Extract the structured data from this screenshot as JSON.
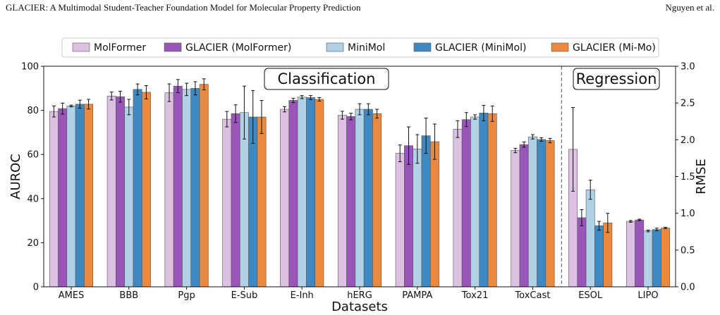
{
  "header": {
    "left": "GLACIER: A Multimodal Student-Teacher Foundation Model for Molecular Property Prediction",
    "right": "Nguyen et al."
  },
  "chart_data": {
    "type": "bar",
    "xlabel": "Datasets",
    "ylabel": "AUROC",
    "ylabel_right": "RMSE",
    "ylim": [
      0,
      100
    ],
    "ylim_right": [
      0,
      3.0
    ],
    "yticks": [
      "0",
      "20",
      "40",
      "60",
      "80",
      "100"
    ],
    "yticks_right": [
      "0.0",
      "0.5",
      "1.0",
      "1.5",
      "2.0",
      "2.5",
      "3.0"
    ],
    "section_labels": [
      "Classification",
      "Regression"
    ],
    "legend_position": "top-center",
    "categories": [
      "AMES",
      "BBB",
      "Pgp",
      "E-Sub",
      "E-Inh",
      "hERG",
      "PAMPA",
      "Tox21",
      "ToxCast",
      "ESOL",
      "LIPO"
    ],
    "category_axis": [
      "left",
      "left",
      "left",
      "left",
      "left",
      "left",
      "left",
      "left",
      "left",
      "right",
      "right"
    ],
    "series": [
      {
        "name": "MolFormer",
        "color": "#dcc1e3",
        "values": [
          79.5,
          86.5,
          88.0,
          76.0,
          80.5,
          77.8,
          60.5,
          71.5,
          61.8,
          1.87,
          0.89
        ],
        "errors": [
          2.5,
          1.8,
          4.0,
          3.5,
          1.2,
          1.8,
          3.8,
          3.8,
          1.0,
          0.57,
          0.012
        ]
      },
      {
        "name": "GLACIER (MolFormer)",
        "color": "#9a55b9",
        "values": [
          80.8,
          86.2,
          91.0,
          78.5,
          84.5,
          77.2,
          64.0,
          75.8,
          64.5,
          0.94,
          0.91
        ],
        "errors": [
          2.5,
          2.5,
          3.0,
          4.0,
          1.0,
          1.5,
          8.5,
          3.2,
          1.2,
          0.11,
          0.01
        ]
      },
      {
        "name": "MiniMol",
        "color": "#b1d2e6",
        "values": [
          82.0,
          81.5,
          89.5,
          79.0,
          86.0,
          80.5,
          62.5,
          77.0,
          68.0,
          1.32,
          0.76
        ],
        "errors": [
          0.4,
          3.5,
          2.8,
          12.0,
          0.7,
          2.5,
          6.5,
          1.0,
          1.0,
          0.13,
          0.012
        ]
      },
      {
        "name": "GLACIER (MiniMol)",
        "color": "#3e89c1",
        "values": [
          82.8,
          89.5,
          90.0,
          77.0,
          85.8,
          80.5,
          68.5,
          78.8,
          66.8,
          0.83,
          0.78
        ],
        "errors": [
          1.8,
          2.5,
          3.0,
          12.0,
          0.9,
          2.5,
          8.0,
          3.5,
          0.8,
          0.06,
          0.018
        ]
      },
      {
        "name": "GLACIER (Mi-Mo)",
        "color": "#eb8a3e",
        "values": [
          82.8,
          88.2,
          91.8,
          77.0,
          85.0,
          78.5,
          65.8,
          78.5,
          66.3,
          0.87,
          0.8
        ],
        "errors": [
          2.2,
          3.0,
          2.5,
          7.5,
          0.8,
          2.0,
          8.0,
          3.5,
          1.0,
          0.13,
          0.01
        ]
      }
    ]
  }
}
